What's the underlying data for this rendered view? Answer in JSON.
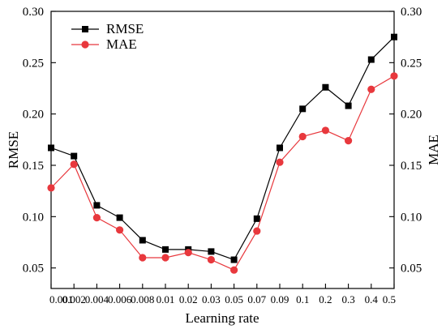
{
  "chart_data": {
    "type": "line",
    "categories": [
      "0.001",
      "0.002",
      "0.004",
      "0.006",
      "0.008",
      "0.01",
      "0.02",
      "0.03",
      "0.05",
      "0.07",
      "0.09",
      "0.1",
      "0.2",
      "0.3",
      "0.4",
      "0.5"
    ],
    "series": [
      {
        "name": "RMSE",
        "axis": "left",
        "color": "#000000",
        "marker": "square",
        "values": [
          0.167,
          0.159,
          0.111,
          0.099,
          0.077,
          0.068,
          0.068,
          0.066,
          0.058,
          0.098,
          0.167,
          0.205,
          0.226,
          0.208,
          0.253,
          0.275
        ]
      },
      {
        "name": "MAE",
        "axis": "right",
        "color": "#e8383d",
        "marker": "circle",
        "values": [
          0.128,
          0.151,
          0.099,
          0.087,
          0.06,
          0.06,
          0.065,
          0.058,
          0.048,
          0.086,
          0.153,
          0.178,
          0.184,
          0.174,
          0.224,
          0.237
        ]
      }
    ],
    "xlabel": "Learning rate",
    "ylabel": "RMSE",
    "y2label": "MAE",
    "ylim": [
      0.03,
      0.3
    ],
    "y2lim": [
      0.03,
      0.3
    ],
    "yticks": [
      "0.05",
      "0.10",
      "0.15",
      "0.20",
      "0.25",
      "0.30"
    ],
    "y2ticks": [
      "0.05",
      "0.10",
      "0.15",
      "0.20",
      "0.25",
      "0.30"
    ],
    "grid": false,
    "legend_position": "top-left"
  }
}
